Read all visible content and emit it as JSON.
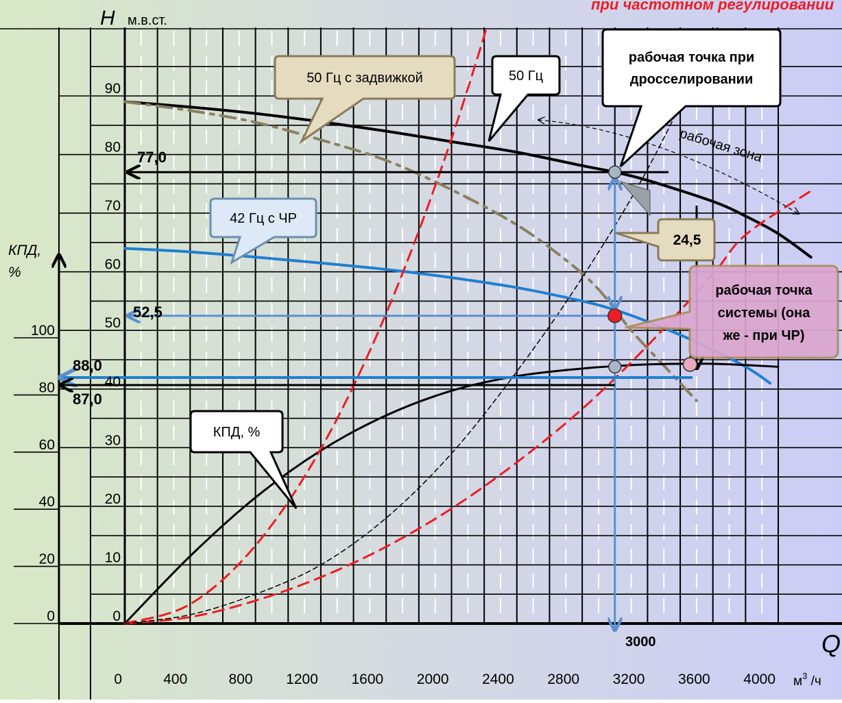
{
  "page": {
    "top_title": "при частотном регулировании",
    "colors": {
      "bg_left": "#d8e8c6",
      "bg_right": "#cbcdf6",
      "grid": "#000000",
      "dash_grid": "#ffffff",
      "black_curve": "#000000",
      "blue_curve": "#1f7fd0",
      "olive_curve": "#8a8060",
      "red_dash": "#ee1c24",
      "arrow_blue": "#5b8fd0",
      "callout_tan": "#e5dcc0",
      "callout_white": "#ffffff",
      "callout_blue": "#dde9f7",
      "callout_pink": "#dca6cf",
      "point_red": "#ee1c24",
      "point_gray": "#a9b6c6",
      "point_pink": "#e7a8c0"
    }
  },
  "chart_data": {
    "type": "line",
    "xlabel": "Q",
    "xunit_base": "м",
    "xunit_exp": "3",
    "xunit_tail": " /ч",
    "ylabel_H": "H",
    "ylabel_H_unit": "м.в.ст.",
    "ylabel_eta": "КПД,",
    "ylabel_eta_pct": "%",
    "xlim": [
      0,
      4000
    ],
    "ylim_H": [
      0,
      95
    ],
    "ylim_eta": [
      0,
      110
    ],
    "x_ticks": [
      0,
      400,
      800,
      1200,
      1600,
      2000,
      2400,
      2800,
      3200,
      3600,
      4000
    ],
    "x_tick_labels": [
      "0",
      "400",
      "800",
      "1200",
      "1600",
      "2000",
      "2400",
      "2800",
      "3200",
      "3600",
      "4000"
    ],
    "H_ticks": [
      0,
      10,
      20,
      30,
      40,
      50,
      60,
      70,
      80,
      90
    ],
    "H_tick_labels": [
      "0",
      "10",
      "20",
      "30",
      "40",
      "50",
      "60",
      "70",
      "80",
      "90"
    ],
    "eta_ticks": [
      0,
      20,
      40,
      60,
      80,
      100
    ],
    "eta_tick_labels": [
      "0",
      "20",
      "40",
      "60",
      "80",
      "100"
    ],
    "series": [
      {
        "key": "h50",
        "color_key": "black_curve",
        "style": "solid",
        "width": 4,
        "axis": "H",
        "x": [
          0,
          400,
          800,
          1200,
          1600,
          2000,
          2400,
          2800,
          3000,
          3200,
          3600,
          3800,
          4000,
          4200
        ],
        "y": [
          89,
          88.1,
          87,
          85.6,
          84,
          82.2,
          80.4,
          78.1,
          77.0,
          75.6,
          72,
          69.5,
          66.5,
          62.5
        ]
      },
      {
        "key": "h42",
        "color_key": "blue_curve",
        "style": "solid",
        "width": 4,
        "axis": "H",
        "x": [
          0,
          400,
          800,
          1200,
          1600,
          2000,
          2400,
          2800,
          3000,
          3200,
          3500,
          3800,
          3950
        ],
        "y": [
          64,
          63.4,
          62.5,
          61.5,
          60.4,
          59.0,
          57.3,
          55.0,
          53.5,
          51.5,
          48,
          43.8,
          41.0
        ]
      },
      {
        "key": "h50v",
        "color_key": "olive_curve",
        "style": "dashdot",
        "width": 4,
        "axis": "H",
        "x": [
          0,
          400,
          800,
          1200,
          1600,
          2000,
          2400,
          2700,
          2900,
          3100,
          3300,
          3500
        ],
        "y": [
          89,
          87.5,
          85.5,
          82.5,
          79,
          74,
          68,
          62,
          57,
          50,
          44,
          38
        ]
      },
      {
        "key": "eta",
        "color_key": "black_curve",
        "style": "solid",
        "width": 3,
        "axis": "H",
        "x": [
          0,
          400,
          800,
          1200,
          1600,
          2000,
          2400,
          2800,
          3000,
          3200,
          3600,
          4000
        ],
        "y": [
          0,
          11.5,
          21.5,
          29.5,
          35.5,
          39.7,
          42.2,
          43.5,
          43.9,
          44.2,
          44.3,
          43.8
        ]
      },
      {
        "key": "sys1",
        "color_key": "red_dash",
        "style": "dash",
        "width": 3,
        "axis": "H",
        "x": [
          0,
          400,
          800,
          1200,
          1600,
          2000,
          2400,
          2600,
          2700
        ],
        "y": [
          0,
          3.3,
          13.3,
          29.8,
          52.9,
          82.7,
          119,
          140,
          151
        ]
      },
      {
        "key": "sys2",
        "color_key": "red_dash",
        "style": "dash",
        "width": 3,
        "axis": "H",
        "x": [
          0,
          400,
          800,
          1200,
          1600,
          2000,
          2400,
          2800,
          3200,
          3600,
          3800,
          4200
        ],
        "y": [
          0,
          1.1,
          3.9,
          7.9,
          13.1,
          19.6,
          27.5,
          36.6,
          47.4,
          59.6,
          66.3,
          73.8
        ]
      },
      {
        "key": "sys3",
        "color_key": "black_curve",
        "style": "thindash",
        "width": 1.5,
        "axis": "H",
        "x": [
          0,
          400,
          800,
          1200,
          1600,
          2000,
          2400,
          2800,
          3200,
          3600,
          3800
        ],
        "y": [
          0,
          1.5,
          5.0,
          10.0,
          18.0,
          29.0,
          43.0,
          59.0,
          77.5,
          100,
          112
        ]
      }
    ],
    "points": [
      {
        "name": "throttle-point",
        "x": 3000,
        "y": 77.0,
        "color_key": "point_gray",
        "r": 9
      },
      {
        "name": "system-point",
        "x": 3000,
        "y": 52.5,
        "color_key": "point_red",
        "r": 10
      },
      {
        "name": "eta-point-87",
        "x": 3000,
        "y": 43.8,
        "color_key": "point_gray",
        "r": 9
      },
      {
        "name": "eta-point-88",
        "x": 3460,
        "y": 44.2,
        "color_key": "point_pink",
        "r": 10
      }
    ],
    "value_labels": {
      "h_throttle": "77,0",
      "h_system": "52,5",
      "eta_87": "87,0",
      "eta_88": "88,0",
      "dh": "24,5",
      "q_op": "3000"
    },
    "callouts": {
      "c50v": "50 Гц с задвижкой",
      "c50": "50 Гц",
      "cthrottle": [
        "рабочая точка при",
        "дросселировании"
      ],
      "c42": "42 Гц с ЧР",
      "cdh": "24,5",
      "csystem": [
        "рабочая точка",
        "системы (она",
        "же - при ЧР)"
      ],
      "ceta": "КПД, %"
    },
    "working_zone": "рабочая зона"
  }
}
